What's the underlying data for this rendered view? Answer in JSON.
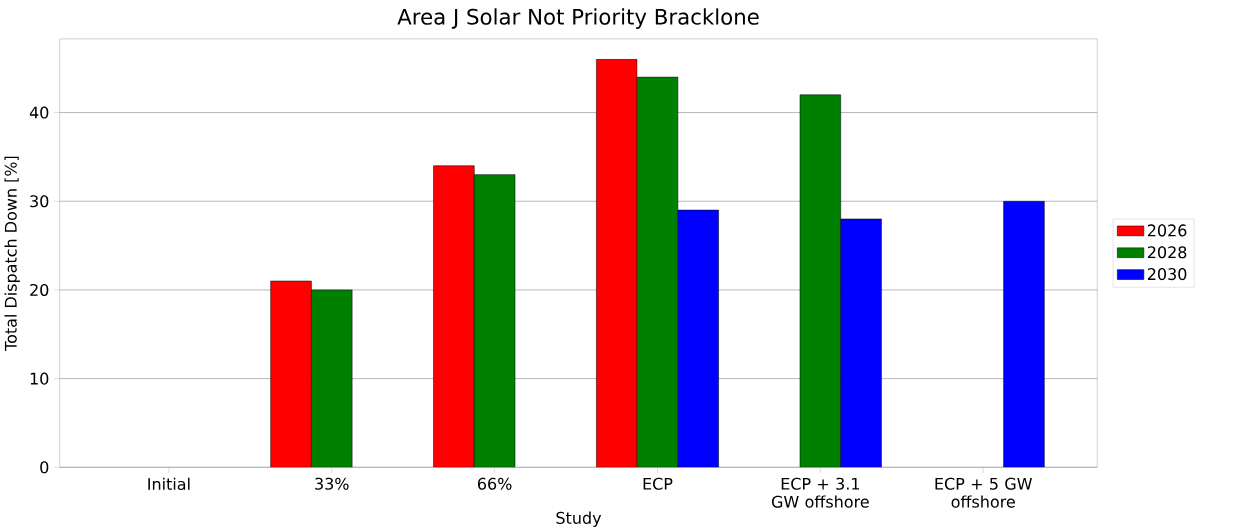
{
  "chart_data": {
    "type": "bar",
    "title": "Area J Solar Not Priority Bracklone",
    "xlabel": "Study",
    "ylabel": "Total Dispatch Down [%]",
    "categories": [
      "Initial",
      "33%",
      "66%",
      "ECP",
      "ECP + 3.1 GW offshore",
      "ECP + 5 GW offshore"
    ],
    "series": [
      {
        "name": "2026",
        "color": "#ff0000",
        "values": [
          null,
          21,
          34,
          46,
          null,
          null
        ]
      },
      {
        "name": "2028",
        "color": "#008000",
        "values": [
          null,
          20,
          33,
          44,
          42,
          null
        ]
      },
      {
        "name": "2030",
        "color": "#0000ff",
        "values": [
          null,
          null,
          null,
          29,
          28,
          30
        ]
      }
    ],
    "ylim": [
      0,
      48.3
    ],
    "yticks": [
      0,
      10,
      20,
      30,
      40
    ],
    "grid": "y",
    "legend": "right"
  }
}
